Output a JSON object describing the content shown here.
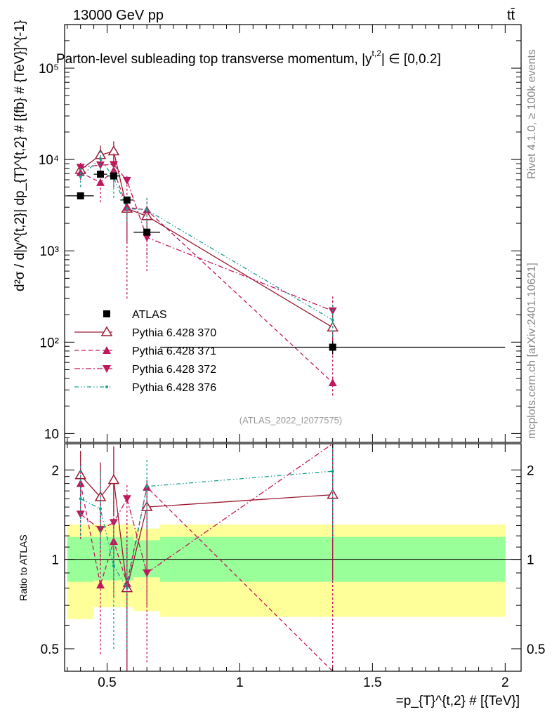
{
  "header": {
    "energy": "13000 GeV pp",
    "process": "tt̄",
    "title": "Parton-level subleading top transverse momentum, |y",
    "title_sup": "t,2",
    "title_tail": "| ∈ [0,0.2]",
    "side_rivet": "Rivet 4.1.0, ≥ 100k events",
    "side_mcplots": "mcplots.cern.ch [arXiv:2401.10621]",
    "watermark": "(ATLAS_2022_I2077575)"
  },
  "chart_data": [
    {
      "type": "scatter",
      "yscale": "log",
      "ylabel": "d²σ / d|y^{t,2}| dp_{T}^{t,2} # [{fb} # {TeV}]^{-1}",
      "ylim": [
        8,
        300000
      ],
      "xlim": [
        0.34,
        2.06
      ],
      "yticks": [
        {
          "value": 10,
          "label": "10"
        },
        {
          "value": 100,
          "label": "10²"
        },
        {
          "value": 1000,
          "label": "10³"
        },
        {
          "value": 10000,
          "label": "10⁴"
        },
        {
          "value": 100000,
          "label": "10⁵"
        }
      ],
      "legend_position": "middle-left",
      "series": [
        {
          "name": "ATLAS",
          "color": "#000000",
          "marker": "square",
          "line": "none",
          "x": [
            0.4,
            0.475,
            0.525,
            0.575,
            0.65,
            1.35
          ],
          "xerr": [
            0.05,
            0.025,
            0.025,
            0.025,
            0.05,
            0.65
          ],
          "y": [
            4000,
            6900,
            6600,
            3600,
            1600,
            88
          ],
          "yerr_lo": [
            300,
            300,
            300,
            150,
            100,
            15
          ],
          "yerr_hi": [
            300,
            300,
            300,
            150,
            100,
            15
          ]
        },
        {
          "name": "Pythia 6.428 370",
          "color": "#9b1b30",
          "marker": "triangle-up-open",
          "line": "solid",
          "x": [
            0.4,
            0.475,
            0.525,
            0.575,
            0.65,
            1.35
          ],
          "y": [
            7700,
            11200,
            12300,
            2900,
            2400,
            145
          ],
          "yerr_lo": [
            1200,
            2500,
            3000,
            1700,
            1000,
            60
          ],
          "yerr_hi": [
            1500,
            3000,
            3500,
            900,
            700,
            80
          ]
        },
        {
          "name": "Pythia 6.428 371",
          "color": "#c0185c",
          "marker": "triangle-up",
          "line": "dashed",
          "x": [
            0.4,
            0.475,
            0.525,
            0.575,
            0.65,
            1.35
          ],
          "y": [
            7200,
            5600,
            7600,
            3000,
            2800,
            36
          ],
          "yerr_lo": [
            1200,
            2200,
            2600,
            2700,
            2200,
            10
          ],
          "yerr_hi": [
            1400,
            1800,
            2400,
            900,
            1000,
            280
          ]
        },
        {
          "name": "Pythia 6.428 372",
          "color": "#c0185c",
          "marker": "triangle-down",
          "line": "dashdot",
          "x": [
            0.4,
            0.475,
            0.525,
            0.575,
            0.65,
            1.35
          ],
          "y": [
            8200,
            8700,
            8800,
            5900,
            1400,
            220
          ],
          "yerr_lo": [
            1200,
            2000,
            2300,
            3500,
            500,
            60
          ],
          "yerr_hi": [
            1400,
            2500,
            2800,
            800,
            700,
            90
          ]
        },
        {
          "name": "Pythia 6.428 376",
          "color": "#1a9e8f",
          "marker": "dot",
          "line": "dashdotdot",
          "x": [
            0.4,
            0.475,
            0.525,
            0.575,
            0.65,
            1.35
          ],
          "y": [
            6500,
            10200,
            6300,
            2900,
            2800,
            175
          ],
          "yerr_lo": [
            1500,
            2500,
            2500,
            800,
            1100,
            60
          ],
          "yerr_hi": [
            1800,
            3000,
            2000,
            900,
            1000,
            80
          ]
        }
      ]
    },
    {
      "type": "scatter",
      "yscale": "log",
      "ylabel": "Ratio to ATLAS",
      "xlabel": "=p_{T}^{t,2} # [{TeV}]",
      "ylim": [
        0.42,
        2.45
      ],
      "xlim": [
        0.34,
        2.06
      ],
      "xticks": [
        {
          "value": 0.5,
          "label": "0.5"
        },
        {
          "value": 1,
          "label": "1"
        },
        {
          "value": 1.5,
          "label": "1.5"
        },
        {
          "value": 2,
          "label": "2"
        }
      ],
      "yticks": [
        {
          "value": 0.5,
          "label": "0.5"
        },
        {
          "value": 1,
          "label": "1"
        },
        {
          "value": 2,
          "label": "2"
        }
      ],
      "bands": [
        {
          "x0": 0.35,
          "x1": 0.45,
          "yellow": [
            0.63,
            1.31
          ],
          "green": [
            0.84,
            1.19
          ]
        },
        {
          "x0": 0.45,
          "x1": 0.5,
          "yellow": [
            0.69,
            1.31
          ],
          "green": [
            0.85,
            1.19
          ]
        },
        {
          "x0": 0.5,
          "x1": 0.55,
          "yellow": [
            0.69,
            1.31
          ],
          "green": [
            0.85,
            1.19
          ]
        },
        {
          "x0": 0.55,
          "x1": 0.6,
          "yellow": [
            0.69,
            1.31
          ],
          "green": [
            0.85,
            1.19
          ]
        },
        {
          "x0": 0.6,
          "x1": 0.7,
          "yellow": [
            0.67,
            1.27
          ],
          "green": [
            0.87,
            1.16
          ]
        },
        {
          "x0": 0.7,
          "x1": 2.0,
          "yellow": [
            0.64,
            1.31
          ],
          "green": [
            0.84,
            1.19
          ]
        }
      ],
      "series": [
        {
          "name": "Pythia 6.428 370",
          "color": "#9b1b30",
          "marker": "triangle-up-open",
          "line": "solid",
          "x": [
            0.4,
            0.475,
            0.525,
            0.575,
            0.65,
            1.35
          ],
          "y": [
            1.92,
            1.62,
            1.85,
            0.8,
            1.5,
            1.65
          ],
          "yerr_lo": [
            0.3,
            0.4,
            0.45,
            0.45,
            0.6,
            0.8
          ],
          "yerr_hi": [
            0.4,
            0.5,
            0.55,
            0.3,
            0.35,
            0.9
          ]
        },
        {
          "name": "Pythia 6.428 371",
          "color": "#c0185c",
          "marker": "triangle-up",
          "line": "dashed",
          "x": [
            0.4,
            0.475,
            0.525,
            0.575,
            0.65,
            1.35
          ],
          "y": [
            1.8,
            0.82,
            1.15,
            0.83,
            1.75,
            0.41
          ],
          "yerr_lo": [
            0.4,
            0.34,
            0.4,
            0.4,
            1.3,
            0.0
          ],
          "yerr_hi": [
            0.3,
            0.35,
            0.5,
            0.5,
            0.0,
            2.0
          ]
        },
        {
          "name": "Pythia 6.428 372",
          "color": "#c0185c",
          "marker": "triangle-down",
          "line": "dashdot",
          "x": [
            0.4,
            0.475,
            0.525,
            0.575,
            0.65,
            1.35
          ],
          "y": [
            1.42,
            1.26,
            1.33,
            1.6,
            0.9,
            2.5
          ],
          "yerr_lo": [
            0.25,
            0.3,
            0.35,
            0.9,
            0.2,
            0.5
          ],
          "yerr_hi": [
            0.3,
            0.4,
            0.45,
            0.2,
            0.5,
            0.5
          ]
        },
        {
          "name": "Pythia 6.428 376",
          "color": "#1a9e8f",
          "marker": "dot",
          "line": "dashdotdot",
          "x": [
            0.4,
            0.475,
            0.525,
            0.575,
            0.65,
            1.35
          ],
          "y": [
            1.6,
            1.48,
            0.95,
            0.8,
            1.76,
            1.98
          ],
          "yerr_lo": [
            0.4,
            0.4,
            0.45,
            0.3,
            0.5,
            0.8
          ],
          "yerr_hi": [
            0.5,
            0.5,
            0.4,
            0.3,
            0.4,
            0.5
          ]
        }
      ]
    }
  ]
}
